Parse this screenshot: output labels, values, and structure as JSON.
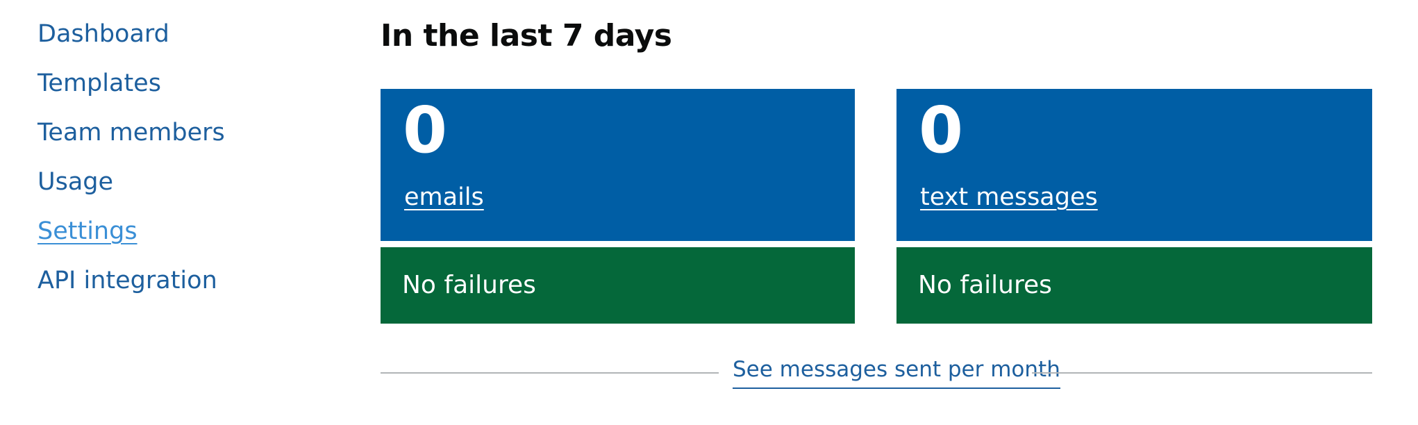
{
  "sidebar": {
    "items": [
      {
        "label": "Dashboard",
        "active": false
      },
      {
        "label": "Templates",
        "active": false
      },
      {
        "label": "Team members",
        "active": false
      },
      {
        "label": "Usage",
        "active": false
      },
      {
        "label": "Settings",
        "active": true
      },
      {
        "label": "API integration",
        "active": false
      }
    ]
  },
  "main": {
    "title": "In the last 7 days",
    "stats": [
      {
        "count": "0",
        "label": "emails",
        "failures": "No failures"
      },
      {
        "count": "0",
        "label": "text messages",
        "failures": "No failures"
      }
    ],
    "monthly_link": "See messages sent per month"
  },
  "colors": {
    "link": "#1d5f9e",
    "active_link": "#3a8fd6",
    "stat_background": "#005ea5",
    "success_background": "#05683a",
    "divider": "#b1b4b6",
    "text": "#0b0c0c"
  }
}
